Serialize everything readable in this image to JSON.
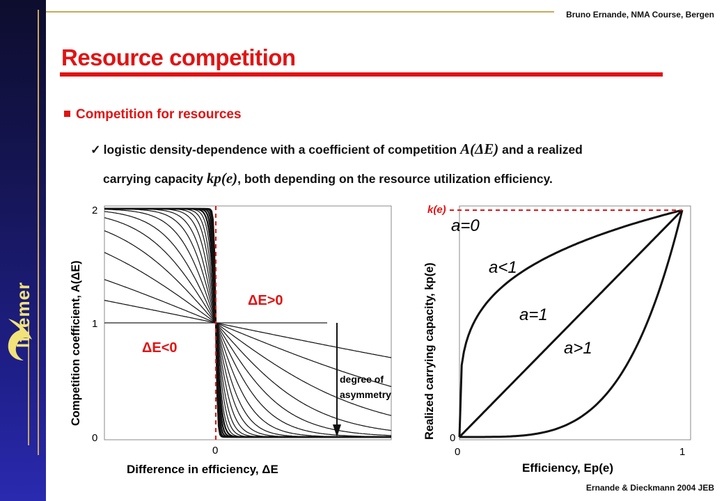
{
  "header": {
    "author": "Bruno Ernande, NMA Course, Bergen"
  },
  "slide": {
    "title": "Resource competition",
    "bullet": "Competition for resources",
    "line1_a": "logistic density-dependence with a coefficient of competition ",
    "line1_math": "A(ΔE)",
    "line1_b": " and a realized",
    "line2_a": "carrying capacity ",
    "line2_math": "kp(e)",
    "line2_b": ", both depending on the resource utilization efficiency."
  },
  "logo": {
    "name": "Ifremer",
    "icon": "ifremer-wave-logo"
  },
  "left_plot": {
    "ylabel": "Competition coefficient, A(ΔE)",
    "xlabel": "Difference in efficiency, ΔE",
    "y_ticks": [
      "0",
      "1",
      "2"
    ],
    "x_tick": "0",
    "label_pos": "ΔE>0",
    "label_neg": "ΔE<0",
    "asym_label_1": "degree of",
    "asym_label_2": "asymmetry"
  },
  "right_plot": {
    "ylabel": "Realized carrying capacity, kp(e)",
    "xlabel": "Efficiency, Ep(e)",
    "y_tick": "0",
    "x_ticks": [
      "0",
      "1"
    ],
    "ke_label": "k(e)",
    "curve_labels": [
      "a=0",
      "a<1",
      "a=1",
      "a>1"
    ]
  },
  "chart_data": [
    {
      "type": "line",
      "title": "",
      "xlabel": "Difference in efficiency, ΔE",
      "ylabel": "Competition coefficient, A(ΔE)",
      "ylim": [
        0,
        2
      ],
      "grid": false,
      "description_series": "family of sigmoid curves A(ΔE)=2/(1+exp(s·ΔE)) with increasing steepness s (degree of asymmetry)",
      "series": [
        {
          "s": 0.05
        },
        {
          "s": 0.1
        },
        {
          "s": 0.18
        },
        {
          "s": 0.28
        },
        {
          "s": 0.4
        },
        {
          "s": 0.55
        },
        {
          "s": 0.75
        },
        {
          "s": 1.0
        },
        {
          "s": 1.3
        },
        {
          "s": 1.7
        },
        {
          "s": 2.2
        },
        {
          "s": 2.8
        },
        {
          "s": 3.6
        },
        {
          "s": 4.6
        },
        {
          "s": 6
        },
        {
          "s": 8
        },
        {
          "s": 11
        },
        {
          "s": 15
        }
      ],
      "hline": 1,
      "vline": 0
    },
    {
      "type": "line",
      "title": "",
      "xlabel": "Efficiency, Ep(e)",
      "ylabel": "Realized carrying capacity, kp(e)",
      "xlim": [
        0,
        1
      ],
      "ylim": [
        0,
        1
      ],
      "grid": false,
      "series": [
        {
          "name": "a<1",
          "exponent": 0.25
        },
        {
          "name": "a=1",
          "exponent": 1
        },
        {
          "name": "a>1",
          "exponent": 4
        }
      ],
      "hline_dashed": 1
    }
  ]
}
